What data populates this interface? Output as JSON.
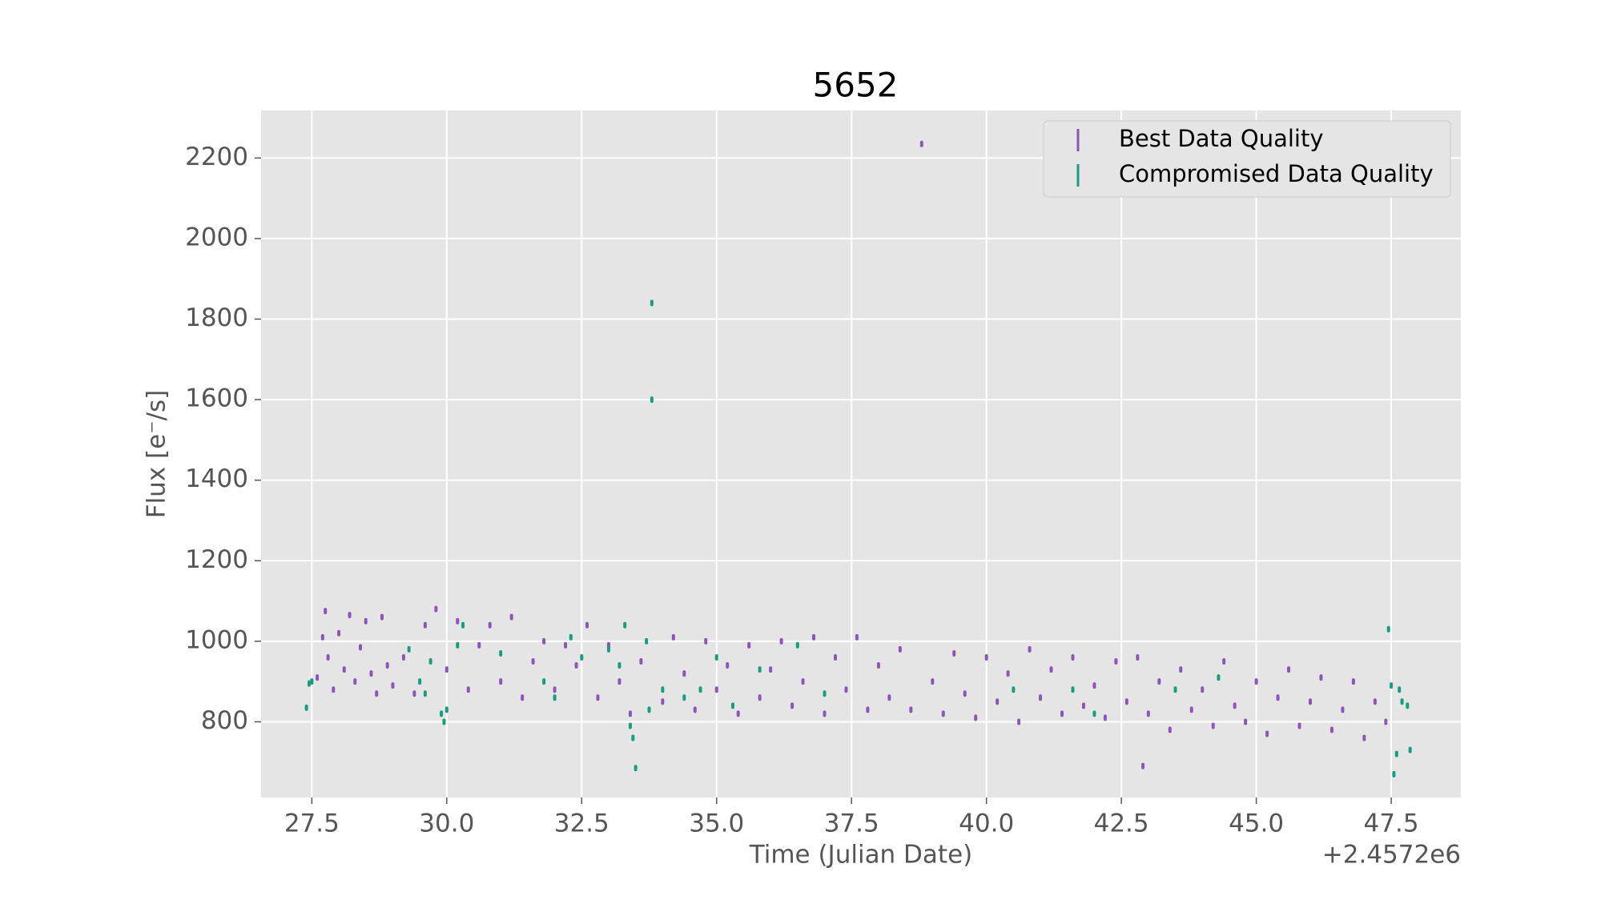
{
  "chart_data": {
    "type": "scatter",
    "title": "5652",
    "xlabel": "Time (Julian Date)",
    "ylabel": "Flux [e⁻/s]",
    "x_offset_text": "+2.4572e6",
    "xlim": [
      26.56,
      48.79
    ],
    "ylim": [
      612,
      2318
    ],
    "xticks": [
      27.5,
      {
        "value": 30,
        "label": "30.0"
      },
      32.5,
      {
        "value": 35,
        "label": "35.0"
      },
      37.5,
      {
        "value": 40,
        "label": "40.0"
      },
      42.5,
      {
        "value": 45,
        "label": "45.0"
      },
      47.5
    ],
    "yticks": [
      800,
      1000,
      1200,
      1400,
      1600,
      1800,
      2000,
      2200
    ],
    "grid": true,
    "legend": "upper right",
    "series": [
      {
        "name": "Best Data Quality",
        "color": "#8e55b8",
        "x": [
          27.6,
          27.7,
          27.75,
          27.8,
          27.9,
          28.0,
          28.1,
          28.2,
          28.3,
          28.4,
          28.5,
          28.6,
          28.7,
          28.8,
          28.9,
          29.0,
          29.2,
          29.4,
          29.6,
          29.8,
          30.0,
          30.2,
          30.4,
          30.6,
          30.8,
          31.0,
          31.2,
          31.4,
          31.6,
          31.8,
          32.0,
          32.2,
          32.4,
          32.6,
          32.8,
          33.0,
          33.2,
          33.4,
          33.6,
          34.0,
          34.2,
          34.4,
          34.6,
          34.8,
          35.0,
          35.2,
          35.4,
          35.6,
          35.8,
          36.0,
          36.2,
          36.4,
          36.6,
          36.8,
          37.0,
          37.2,
          37.4,
          37.6,
          37.8,
          38.0,
          38.2,
          38.4,
          38.6,
          38.8,
          39.0,
          39.2,
          39.4,
          39.6,
          39.8,
          40.0,
          40.2,
          40.4,
          40.6,
          40.8,
          41.0,
          41.2,
          41.4,
          41.6,
          41.8,
          42.0,
          42.2,
          42.4,
          42.6,
          42.8,
          42.9,
          43.0,
          43.2,
          43.4,
          43.6,
          43.8,
          44.0,
          44.2,
          44.4,
          44.6,
          44.8,
          45.0,
          45.2,
          45.4,
          45.6,
          45.8,
          46.0,
          46.2,
          46.4,
          46.6,
          46.8,
          47.0,
          47.2,
          47.4
        ],
        "values": [
          910,
          1010,
          1075,
          960,
          880,
          1020,
          930,
          1065,
          900,
          985,
          1050,
          920,
          870,
          1060,
          940,
          890,
          960,
          870,
          1040,
          1080,
          930,
          1050,
          880,
          990,
          1040,
          900,
          1060,
          860,
          950,
          1000,
          880,
          990,
          940,
          1040,
          860,
          990,
          900,
          820,
          950,
          850,
          1010,
          920,
          830,
          1000,
          880,
          940,
          820,
          990,
          860,
          930,
          1000,
          840,
          900,
          1010,
          820,
          960,
          880,
          1010,
          830,
          940,
          860,
          980,
          830,
          2235,
          900,
          820,
          970,
          870,
          810,
          960,
          850,
          920,
          800,
          980,
          860,
          930,
          820,
          960,
          840,
          890,
          810,
          950,
          850,
          960,
          690,
          820,
          900,
          780,
          930,
          830,
          880,
          790,
          950,
          840,
          800,
          900,
          770,
          860,
          930,
          790,
          850,
          910,
          780,
          830,
          900,
          760,
          850,
          800
        ]
      },
      {
        "name": "Compromised Data Quality",
        "color": "#14a07e",
        "x": [
          27.4,
          27.45,
          27.5,
          29.3,
          29.5,
          29.6,
          29.7,
          29.9,
          29.95,
          30.0,
          30.2,
          30.3,
          31.0,
          31.8,
          32.0,
          32.3,
          32.5,
          33.0,
          33.2,
          33.3,
          33.4,
          33.45,
          33.5,
          33.7,
          33.75,
          33.8,
          33.8,
          34.0,
          34.4,
          34.7,
          35.0,
          35.3,
          35.8,
          36.5,
          37.0,
          40.5,
          41.6,
          42.0,
          43.5,
          44.3,
          47.45,
          47.5,
          47.55,
          47.6,
          47.65,
          47.7,
          47.8,
          47.85
        ],
        "values": [
          835,
          895,
          900,
          980,
          900,
          870,
          950,
          820,
          800,
          830,
          990,
          1040,
          970,
          900,
          860,
          1010,
          960,
          980,
          940,
          1040,
          790,
          760,
          685,
          1000,
          830,
          1840,
          1600,
          880,
          860,
          880,
          960,
          840,
          930,
          990,
          870,
          880,
          880,
          820,
          880,
          910,
          1030,
          890,
          670,
          720,
          880,
          850,
          840,
          730
        ]
      }
    ]
  }
}
